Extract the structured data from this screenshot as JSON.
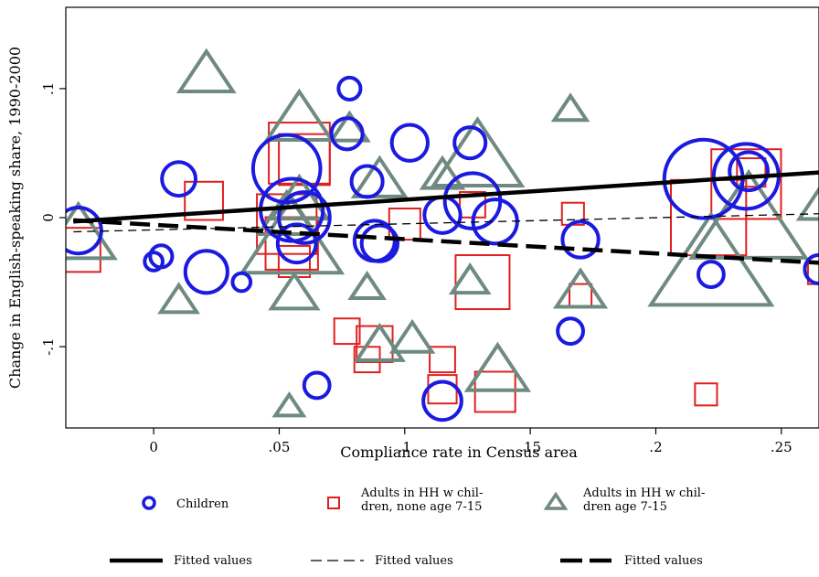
{
  "chart_data": {
    "type": "scatter",
    "title": "",
    "xlabel": "Compliance rate in Census area",
    "ylabel": "Change in English-speaking share, 1990-2000",
    "xlim": [
      -0.035,
      0.265
    ],
    "ylim": [
      -0.163,
      0.163
    ],
    "x_ticks": [
      0,
      0.05,
      0.1,
      0.15,
      0.2,
      0.25
    ],
    "x_tick_labels": [
      "0",
      ".05",
      ".1",
      ".15",
      ".2",
      ".25"
    ],
    "y_ticks": [
      -0.1,
      0,
      0.1
    ],
    "y_tick_labels": [
      "-.1",
      "0",
      ".1"
    ],
    "grid": false,
    "legend_position": "bottom",
    "colors": {
      "children": "#1a1ae0",
      "adults_none": "#e02020",
      "adults_with": "#6f8a80",
      "fit": "#000000"
    },
    "series": [
      {
        "name": "Children",
        "marker": "circle",
        "points": [
          {
            "x": 0.078,
            "y": 0.1,
            "w": 0.3
          },
          {
            "x": 0.077,
            "y": 0.065,
            "w": 0.6
          },
          {
            "x": 0.102,
            "y": 0.058,
            "w": 0.8
          },
          {
            "x": 0.126,
            "y": 0.058,
            "w": 0.6
          },
          {
            "x": 0.053,
            "y": 0.038,
            "w": 2.8
          },
          {
            "x": 0.01,
            "y": 0.03,
            "w": 0.7
          },
          {
            "x": 0.085,
            "y": 0.028,
            "w": 0.6
          },
          {
            "x": 0.219,
            "y": 0.03,
            "w": 3.8
          },
          {
            "x": 0.236,
            "y": 0.032,
            "w": 2.6
          },
          {
            "x": 0.237,
            "y": 0.036,
            "w": 0.9
          },
          {
            "x": 0.127,
            "y": 0.013,
            "w": 1.9
          },
          {
            "x": 0.055,
            "y": 0.006,
            "w": 2.4
          },
          {
            "x": 0.06,
            "y": 0.0,
            "w": 1.6
          },
          {
            "x": 0.115,
            "y": 0.002,
            "w": 0.8
          },
          {
            "x": 0.136,
            "y": -0.003,
            "w": 1.2
          },
          {
            "x": -0.03,
            "y": -0.01,
            "w": 1.3
          },
          {
            "x": 0.057,
            "y": -0.02,
            "w": 0.9
          },
          {
            "x": 0.088,
            "y": -0.018,
            "w": 1.0
          },
          {
            "x": 0.09,
            "y": -0.02,
            "w": 0.8
          },
          {
            "x": 0.17,
            "y": -0.017,
            "w": 0.8
          },
          {
            "x": 0.003,
            "y": -0.03,
            "w": 0.3
          },
          {
            "x": 0.0,
            "y": -0.034,
            "w": 0.2
          },
          {
            "x": 0.021,
            "y": -0.042,
            "w": 1.1
          },
          {
            "x": 0.035,
            "y": -0.05,
            "w": 0.2
          },
          {
            "x": 0.222,
            "y": -0.044,
            "w": 0.4
          },
          {
            "x": 0.265,
            "y": -0.04,
            "w": 0.5
          },
          {
            "x": 0.166,
            "y": -0.088,
            "w": 0.4
          },
          {
            "x": 0.065,
            "y": -0.13,
            "w": 0.4
          },
          {
            "x": 0.115,
            "y": -0.142,
            "w": 0.9
          }
        ]
      },
      {
        "name": "Adults in HH w children, none age 7-15",
        "legend_lines": [
          "Adults in HH w chil-",
          "dren, none age 7-15"
        ],
        "marker": "square",
        "points": [
          {
            "x": 0.058,
            "y": 0.05,
            "w": 2.3
          },
          {
            "x": 0.06,
            "y": 0.045,
            "w": 1.6
          },
          {
            "x": 0.236,
            "y": 0.026,
            "w": 3.0
          },
          {
            "x": 0.221,
            "y": 0.0,
            "w": 3.5
          },
          {
            "x": 0.238,
            "y": 0.035,
            "w": 0.5
          },
          {
            "x": 0.02,
            "y": 0.013,
            "w": 0.9
          },
          {
            "x": 0.127,
            "y": 0.01,
            "w": 0.4
          },
          {
            "x": 0.167,
            "y": 0.003,
            "w": 0.3
          },
          {
            "x": 0.053,
            "y": -0.005,
            "w": 2.2
          },
          {
            "x": 0.055,
            "y": -0.02,
            "w": 1.7
          },
          {
            "x": 0.1,
            "y": -0.005,
            "w": 0.6
          },
          {
            "x": -0.03,
            "y": -0.025,
            "w": 1.2
          },
          {
            "x": 0.056,
            "y": -0.034,
            "w": 0.6
          },
          {
            "x": 0.131,
            "y": -0.05,
            "w": 1.8
          },
          {
            "x": 0.17,
            "y": -0.06,
            "w": 0.3
          },
          {
            "x": 0.077,
            "y": -0.088,
            "w": 0.4
          },
          {
            "x": 0.088,
            "y": -0.098,
            "w": 0.8
          },
          {
            "x": 0.085,
            "y": -0.11,
            "w": 0.4
          },
          {
            "x": 0.115,
            "y": -0.11,
            "w": 0.4
          },
          {
            "x": 0.115,
            "y": -0.133,
            "w": 0.5
          },
          {
            "x": 0.136,
            "y": -0.135,
            "w": 1.0
          },
          {
            "x": 0.22,
            "y": -0.137,
            "w": 0.3
          },
          {
            "x": 0.265,
            "y": -0.043,
            "w": 0.3
          }
        ]
      },
      {
        "name": "Adults in HH w children age 7-15",
        "legend_lines": [
          "Adults in HH w chil-",
          "dren age 7-15"
        ],
        "marker": "triangle",
        "points": [
          {
            "x": 0.021,
            "y": 0.11,
            "w": 1.1
          },
          {
            "x": 0.058,
            "y": 0.075,
            "w": 1.6
          },
          {
            "x": 0.166,
            "y": 0.083,
            "w": 0.4
          },
          {
            "x": 0.078,
            "y": 0.068,
            "w": 0.5
          },
          {
            "x": 0.129,
            "y": 0.045,
            "w": 3.0
          },
          {
            "x": 0.115,
            "y": 0.032,
            "w": 0.6
          },
          {
            "x": 0.09,
            "y": 0.028,
            "w": 1.0
          },
          {
            "x": 0.058,
            "y": 0.012,
            "w": 1.2
          },
          {
            "x": 0.053,
            "y": 0.0,
            "w": 1.2
          },
          {
            "x": 0.055,
            "y": -0.02,
            "w": 3.8
          },
          {
            "x": -0.03,
            "y": -0.015,
            "w": 2.0
          },
          {
            "x": 0.237,
            "y": -0.005,
            "w": 5.0
          },
          {
            "x": 0.222,
            "y": -0.04,
            "w": 5.6
          },
          {
            "x": 0.265,
            "y": 0.008,
            "w": 0.6
          },
          {
            "x": 0.01,
            "y": -0.065,
            "w": 0.5
          },
          {
            "x": 0.056,
            "y": -0.06,
            "w": 0.8
          },
          {
            "x": 0.085,
            "y": -0.055,
            "w": 0.4
          },
          {
            "x": 0.126,
            "y": -0.05,
            "w": 0.5
          },
          {
            "x": 0.17,
            "y": -0.058,
            "w": 0.9
          },
          {
            "x": 0.09,
            "y": -0.1,
            "w": 0.8
          },
          {
            "x": 0.103,
            "y": -0.095,
            "w": 0.6
          },
          {
            "x": 0.137,
            "y": -0.12,
            "w": 1.4
          },
          {
            "x": 0.054,
            "y": -0.147,
            "w": 0.3
          }
        ]
      }
    ],
    "fit_lines": [
      {
        "name": "Fitted values",
        "style": "solid",
        "x": [
          -0.032,
          0.265
        ],
        "y": [
          -0.003,
          0.035
        ]
      },
      {
        "name": "Fitted values",
        "style": "short-dash",
        "x": [
          -0.032,
          0.265
        ],
        "y": [
          -0.011,
          0.003
        ]
      },
      {
        "name": "Fitted values",
        "style": "long-dash",
        "x": [
          -0.032,
          0.265
        ],
        "y": [
          -0.002,
          -0.035
        ]
      }
    ]
  }
}
